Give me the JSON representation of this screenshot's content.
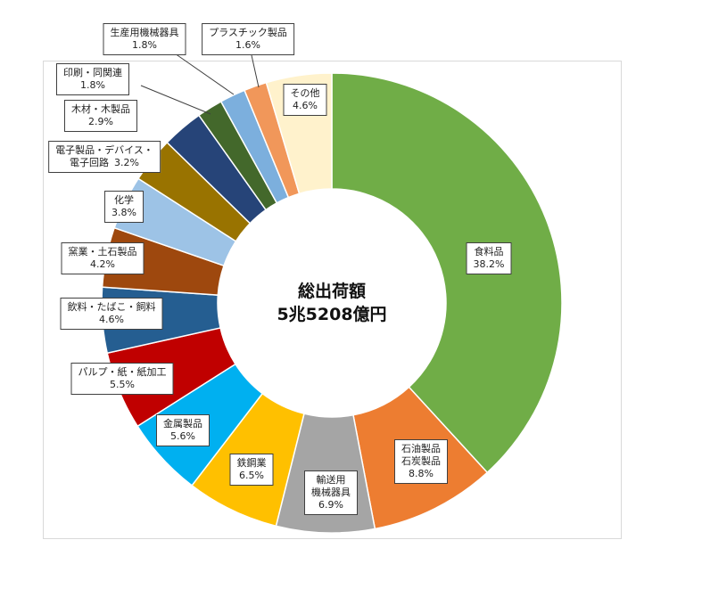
{
  "chart_data": {
    "type": "donut",
    "center_label": "総出荷額\n5兆5208億円",
    "categories": [
      "食料品",
      "石油製品\n石炭製品",
      "輸送用\n機械器具",
      "鉄鋼業",
      "金属製品",
      "パルプ・紙・紙加工",
      "飲料・たばこ・飼料",
      "窯業・土石製品",
      "化学",
      "電子製品・デバイス・\n電子回路",
      "木材・木製品",
      "印刷・同関連",
      "生産用機械器具",
      "プラスチック製品",
      "その他"
    ],
    "values": [
      38.2,
      8.8,
      6.9,
      6.5,
      5.6,
      5.5,
      4.6,
      4.2,
      3.8,
      3.2,
      2.9,
      1.8,
      1.8,
      1.6,
      4.6
    ],
    "value_labels": [
      "38.2%",
      "8.8%",
      "6.9%",
      "6.5%",
      "5.6%",
      "5.5%",
      "4.6%",
      "4.2%",
      "3.8%",
      "3.2%",
      "2.9%",
      "1.8%",
      "1.8%",
      "1.6%",
      "4.6%"
    ],
    "colors": [
      "#70ad47",
      "#ed7d31",
      "#a5a5a5",
      "#ffc000",
      "#00b0f0",
      "#c00000",
      "#255e91",
      "#9e480e",
      "#9dc3e6",
      "#997300",
      "#264478",
      "#43682b",
      "#7cafdd",
      "#f1975a",
      "#fff2cc"
    ]
  }
}
